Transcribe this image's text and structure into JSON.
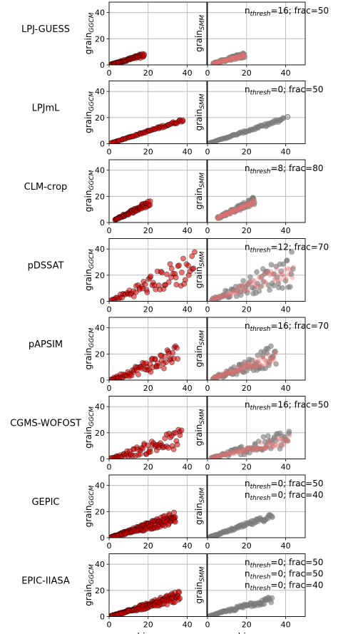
{
  "chart_data": {
    "type": "scatter",
    "x_ticks": [
      "0",
      "20",
      "40"
    ],
    "y_ticks": [
      "0",
      "20",
      "40"
    ],
    "xlim": [
      0,
      50
    ],
    "ylim": [
      0,
      48
    ],
    "grid": true,
    "left_ylabel": {
      "base": "grain",
      "sub": "GGCM"
    },
    "right_ylabel": {
      "base": "grain",
      "sub": "SMM"
    },
    "left_xlabel": {
      "base": "biom",
      "sub": "GGCM"
    },
    "right_xlabel": {
      "base": "biom",
      "sub": "SMM"
    },
    "colors": {
      "ggcm": "#d40000",
      "smm": "#808080",
      "smm_overlay": "#e07070",
      "edge": "#000000"
    },
    "rows": [
      {
        "model": "LPJ-GUESS",
        "annotations": [
          "n|thresh|=16; frac=50"
        ],
        "ggcm": {
          "x0": 1,
          "x1": 18,
          "slope": 0.42,
          "spread": 0.15
        },
        "smm": {
          "x0": 3,
          "x1": 19,
          "slope": 0.4,
          "spread": 0.18,
          "overlay": true
        }
      },
      {
        "model": "LPJmL",
        "annotations": [
          "n|thresh|=0; frac=50"
        ],
        "ggcm": {
          "x0": 1,
          "x1": 38,
          "slope": 0.48,
          "spread": 0.05
        },
        "smm": {
          "x0": 1,
          "x1": 39,
          "slope": 0.48,
          "spread": 0.06,
          "outlier": [
            41,
            20.5
          ]
        }
      },
      {
        "model": "CLM-crop",
        "annotations": [
          "n|thresh|=8; frac=80"
        ],
        "ggcm": {
          "x0": 3,
          "x1": 21,
          "slope": 0.72,
          "spread": 0.2
        },
        "smm": {
          "x0": 5,
          "x1": 24,
          "slope": 0.7,
          "spread": 0.22,
          "overlay": true
        }
      },
      {
        "model": "pDSSAT",
        "annotations": [
          "n|thresh|=12; frac=70"
        ],
        "ggcm": {
          "x0": 1,
          "x1": 44,
          "slope": 0.62,
          "spread": 0.55
        },
        "smm": {
          "x0": 2,
          "x1": 44,
          "slope": 0.58,
          "spread": 0.55,
          "overlay": true
        }
      },
      {
        "model": "pAPSIM",
        "annotations": [
          "n|thresh|=16; frac=70"
        ],
        "ggcm": {
          "x0": 1,
          "x1": 35,
          "slope": 0.55,
          "spread": 0.45
        },
        "smm": {
          "x0": 3,
          "x1": 35,
          "slope": 0.55,
          "spread": 0.42,
          "overlay": true
        }
      },
      {
        "model": "CGMS-WOFOST",
        "annotations": [
          "n|thresh|=16; frac=50"
        ],
        "ggcm": {
          "x0": 1,
          "x1": 37,
          "slope": 0.42,
          "spread": 0.4
        },
        "smm": {
          "x0": 2,
          "x1": 42,
          "slope": 0.38,
          "spread": 0.35,
          "overlay": true
        }
      },
      {
        "model": "GEPIC",
        "annotations": [
          "n|thresh|=0; frac=50",
          "n|thresh|=0; frac=40"
        ],
        "ggcm": {
          "x0": 1,
          "x1": 34,
          "slope": 0.52,
          "spread": 0.12,
          "double": 0.38
        },
        "smm": {
          "x0": 1,
          "x1": 33,
          "slope": 0.5,
          "spread": 0.12
        }
      },
      {
        "model": "EPIC-IIASA",
        "annotations": [
          "n|thresh|=0; frac=50",
          "n|thresh|=0; frac=50",
          "n|thresh|=0; frac=40"
        ],
        "ggcm": {
          "x0": 1,
          "x1": 36,
          "slope": 0.48,
          "spread": 0.12,
          "double": 0.38
        },
        "smm": {
          "x0": 1,
          "x1": 33,
          "slope": 0.42,
          "spread": 0.15
        }
      }
    ]
  }
}
